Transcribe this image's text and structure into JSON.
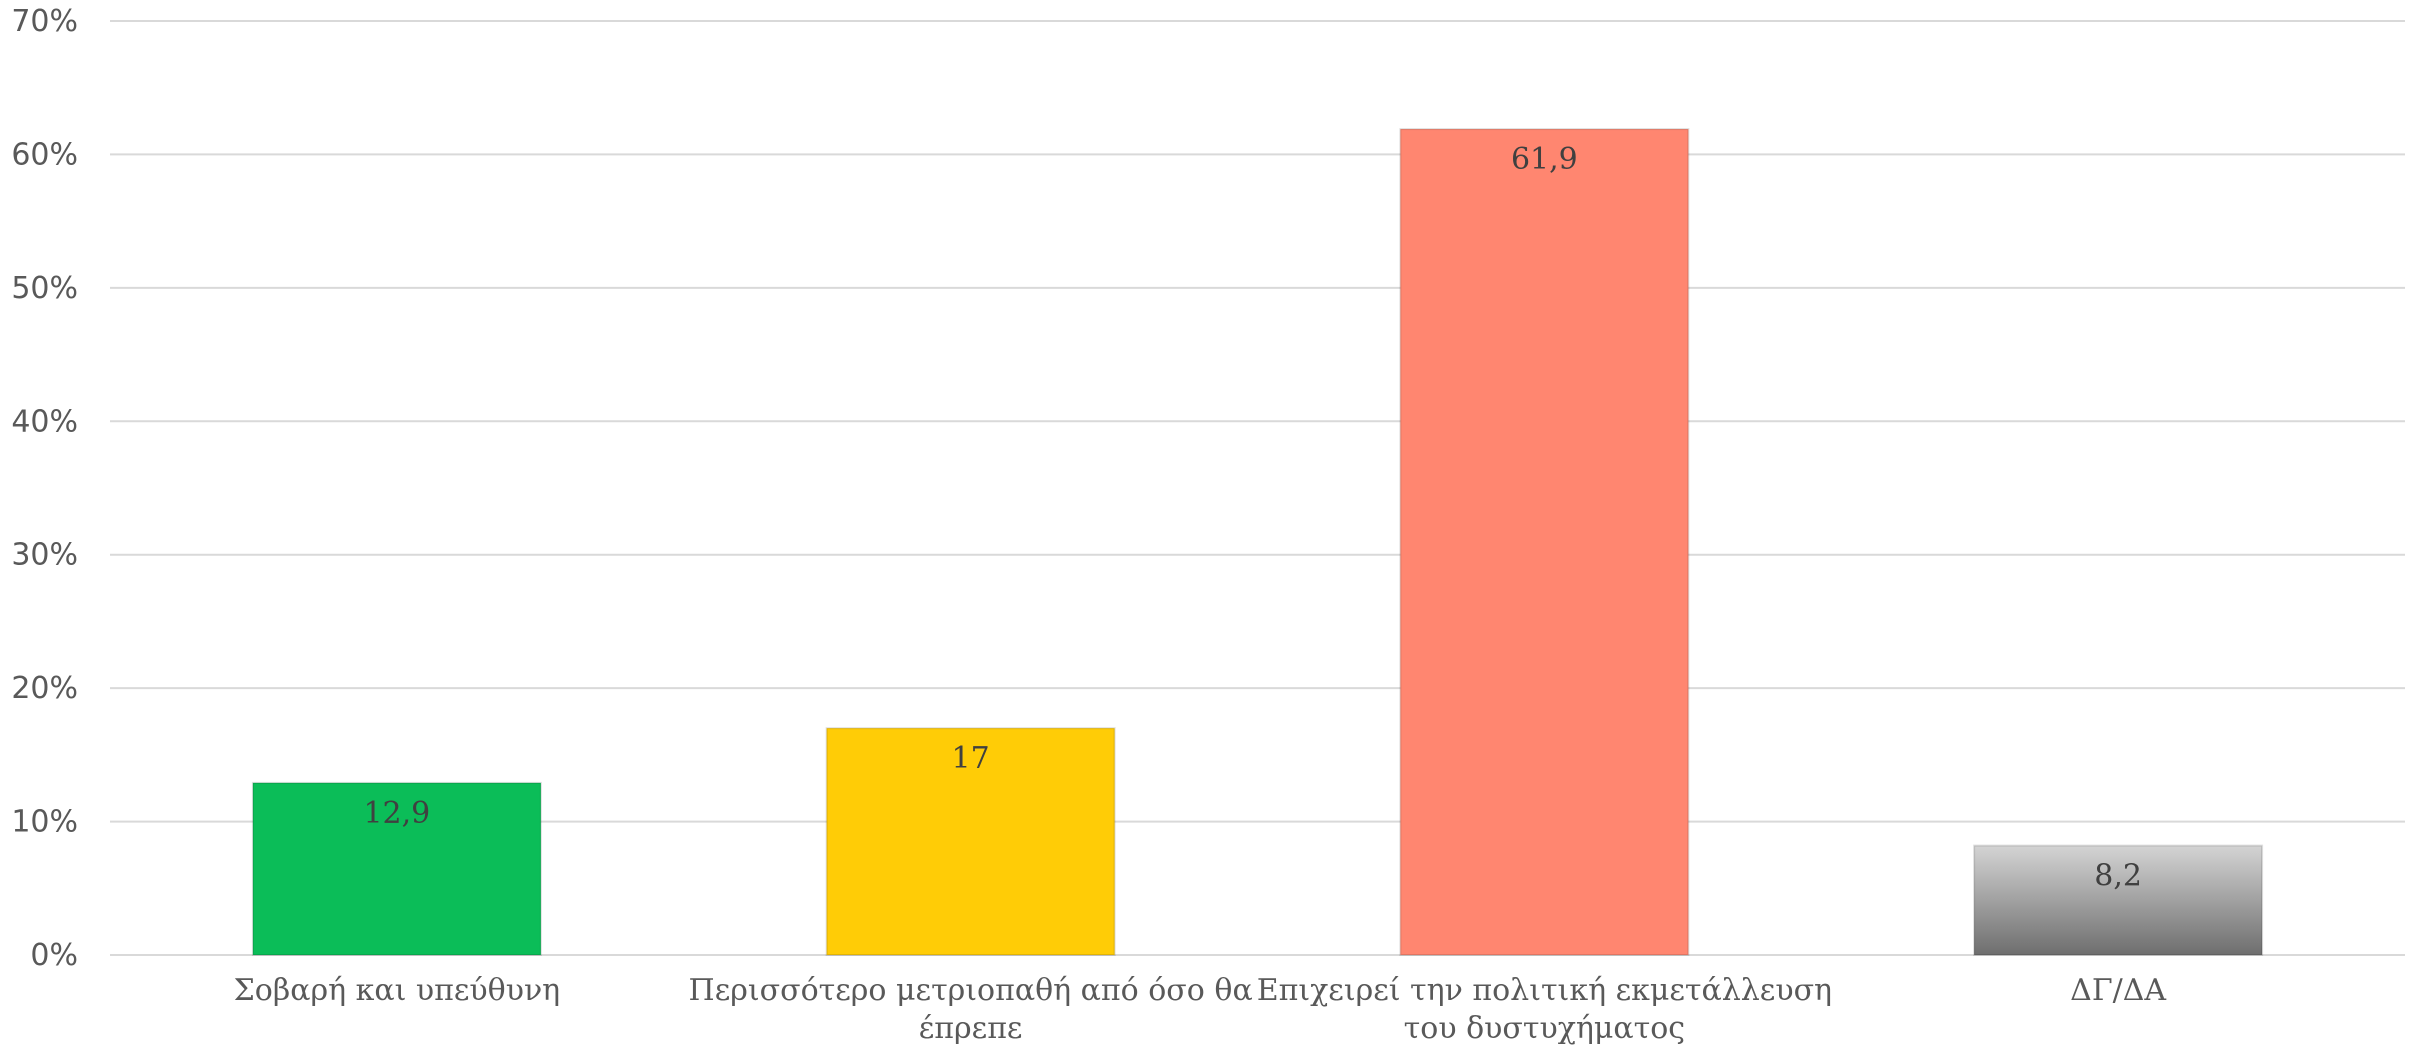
{
  "chart_data": {
    "type": "bar",
    "categories": [
      [
        "Σοβαρή και υπεύθυνη"
      ],
      [
        "Περισσότερο  μετριοπαθή από όσο  θα",
        "έπρεπε"
      ],
      [
        "Επιχειρεί  την πολιτική  εκμετάλλευση",
        "του δυστυχήματος"
      ],
      [
        "ΔΓ/ΔΑ"
      ]
    ],
    "values": [
      12.9,
      17,
      61.9,
      8.2
    ],
    "value_labels": [
      "12,9",
      "17",
      "61,9",
      "8,2"
    ],
    "colors": [
      "#0bbd58",
      "#ffcc06",
      "#ff8670",
      "gradient-gray"
    ],
    "ylim": [
      0,
      70
    ],
    "yticks": [
      0,
      10,
      20,
      30,
      40,
      50,
      60,
      70
    ],
    "ytick_labels": [
      "0%",
      "10%",
      "20%",
      "30%",
      "40%",
      "50%",
      "60%",
      "70%"
    ],
    "grid": true,
    "title": "",
    "xlabel": "",
    "ylabel": ""
  }
}
